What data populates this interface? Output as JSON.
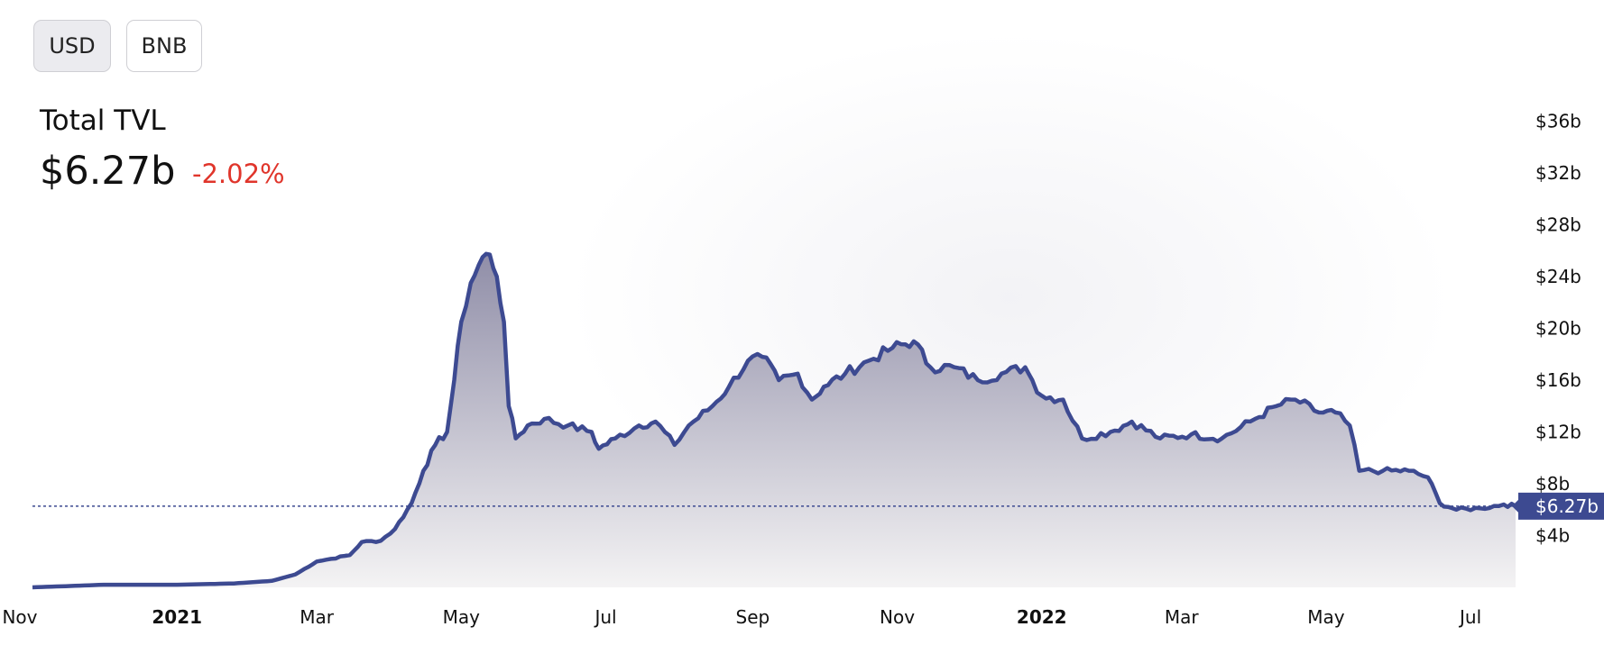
{
  "toolbar": {
    "currency_options": [
      {
        "label": "USD",
        "selected": true
      },
      {
        "label": "BNB",
        "selected": false
      }
    ]
  },
  "summary": {
    "title": "Total TVL",
    "value": "$6.27b",
    "change": "-2.02%",
    "change_color": "#e0352b"
  },
  "colors": {
    "line": "#3d4a91",
    "area_top": "#908ea8",
    "area_bottom": "#f4f3f4",
    "current_label_bg": "#3d4a91"
  },
  "chart_data": {
    "type": "area",
    "title": "Total TVL",
    "xlabel": "",
    "ylabel": "",
    "y_unit": "billion USD",
    "ylim": [
      0,
      38
    ],
    "y_ticks": [
      {
        "value": 4,
        "label": "$4b"
      },
      {
        "value": 8,
        "label": "$8b"
      },
      {
        "value": 12,
        "label": "$12b"
      },
      {
        "value": 16,
        "label": "$16b"
      },
      {
        "value": 20,
        "label": "$20b"
      },
      {
        "value": 24,
        "label": "$24b"
      },
      {
        "value": 28,
        "label": "$28b"
      },
      {
        "value": 32,
        "label": "$32b"
      },
      {
        "value": 36,
        "label": "$36b"
      }
    ],
    "x_range": [
      "2020-11-01",
      "2022-07-20"
    ],
    "x_ticks": [
      {
        "date": "2020-11-01",
        "label": "Nov",
        "bold": false
      },
      {
        "date": "2021-01-01",
        "label": "2021",
        "bold": true
      },
      {
        "date": "2021-03-01",
        "label": "Mar",
        "bold": false
      },
      {
        "date": "2021-05-01",
        "label": "May",
        "bold": false
      },
      {
        "date": "2021-07-01",
        "label": "Jul",
        "bold": false
      },
      {
        "date": "2021-09-01",
        "label": "Sep",
        "bold": false
      },
      {
        "date": "2021-11-01",
        "label": "Nov",
        "bold": false
      },
      {
        "date": "2022-01-01",
        "label": "2022",
        "bold": true
      },
      {
        "date": "2022-03-01",
        "label": "Mar",
        "bold": false
      },
      {
        "date": "2022-05-01",
        "label": "May",
        "bold": false
      },
      {
        "date": "2022-07-01",
        "label": "Jul",
        "bold": false
      }
    ],
    "current_value": 6.27,
    "current_label": "$6.27b",
    "series": [
      {
        "points": [
          [
            "2020-11-01",
            0.0
          ],
          [
            "2020-12-01",
            0.2
          ],
          [
            "2021-01-01",
            0.2
          ],
          [
            "2021-01-25",
            0.3
          ],
          [
            "2021-02-10",
            0.5
          ],
          [
            "2021-02-20",
            1.0
          ],
          [
            "2021-03-01",
            2.0
          ],
          [
            "2021-03-07",
            2.2
          ],
          [
            "2021-03-15",
            2.5
          ],
          [
            "2021-03-20",
            3.5
          ],
          [
            "2021-03-28",
            3.6
          ],
          [
            "2021-04-03",
            4.5
          ],
          [
            "2021-04-10",
            6.5
          ],
          [
            "2021-04-15",
            9.0
          ],
          [
            "2021-04-20",
            11.0
          ],
          [
            "2021-04-25",
            12.0
          ],
          [
            "2021-04-28",
            16.0
          ],
          [
            "2021-05-01",
            20.5
          ],
          [
            "2021-05-05",
            23.5
          ],
          [
            "2021-05-10",
            25.5
          ],
          [
            "2021-05-13",
            25.7
          ],
          [
            "2021-05-16",
            24.0
          ],
          [
            "2021-05-19",
            20.5
          ],
          [
            "2021-05-21",
            14.0
          ],
          [
            "2021-05-24",
            11.5
          ],
          [
            "2021-05-29",
            12.5
          ],
          [
            "2021-06-05",
            13.0
          ],
          [
            "2021-06-15",
            12.5
          ],
          [
            "2021-06-25",
            12.0
          ],
          [
            "2021-06-28",
            10.7
          ],
          [
            "2021-07-05",
            11.5
          ],
          [
            "2021-07-15",
            12.5
          ],
          [
            "2021-07-22",
            12.8
          ],
          [
            "2021-07-30",
            11.0
          ],
          [
            "2021-08-05",
            12.5
          ],
          [
            "2021-08-15",
            14.0
          ],
          [
            "2021-08-22",
            15.5
          ],
          [
            "2021-08-30",
            17.5
          ],
          [
            "2021-09-05",
            17.8
          ],
          [
            "2021-09-12",
            16.0
          ],
          [
            "2021-09-20",
            16.5
          ],
          [
            "2021-09-26",
            14.5
          ],
          [
            "2021-10-01",
            15.5
          ],
          [
            "2021-10-10",
            16.5
          ],
          [
            "2021-10-20",
            17.5
          ],
          [
            "2021-10-30",
            18.5
          ],
          [
            "2021-11-08",
            19.0
          ],
          [
            "2021-11-15",
            17.0
          ],
          [
            "2021-11-25",
            17.0
          ],
          [
            "2021-12-05",
            16.0
          ],
          [
            "2021-12-15",
            16.5
          ],
          [
            "2021-12-25",
            17.0
          ],
          [
            "2021-12-28",
            16.0
          ],
          [
            "2022-01-01",
            14.8
          ],
          [
            "2022-01-10",
            14.5
          ],
          [
            "2022-01-18",
            11.5
          ],
          [
            "2022-01-30",
            12.0
          ],
          [
            "2022-02-08",
            12.8
          ],
          [
            "2022-02-20",
            11.5
          ],
          [
            "2022-03-05",
            11.8
          ],
          [
            "2022-03-18",
            11.5
          ],
          [
            "2022-04-01",
            13.0
          ],
          [
            "2022-04-10",
            14.0
          ],
          [
            "2022-04-18",
            14.5
          ],
          [
            "2022-04-28",
            13.5
          ],
          [
            "2022-05-05",
            13.5
          ],
          [
            "2022-05-11",
            12.5
          ],
          [
            "2022-05-15",
            9.0
          ],
          [
            "2022-05-25",
            9.0
          ],
          [
            "2022-06-05",
            9.0
          ],
          [
            "2022-06-13",
            8.5
          ],
          [
            "2022-06-18",
            6.5
          ],
          [
            "2022-06-25",
            6.0
          ],
          [
            "2022-07-05",
            6.1
          ],
          [
            "2022-07-15",
            6.4
          ],
          [
            "2022-07-20",
            6.27
          ]
        ]
      }
    ]
  }
}
